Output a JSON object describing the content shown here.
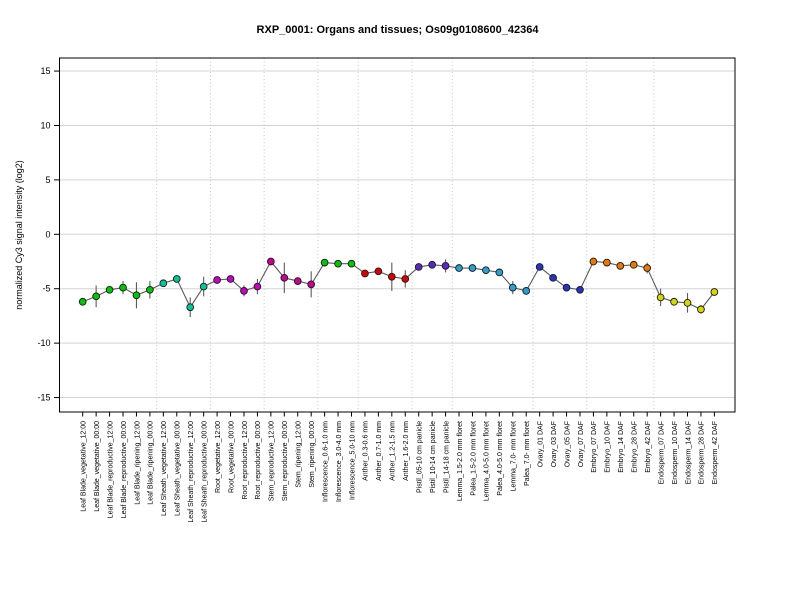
{
  "window": {
    "background": "#FFFFFF"
  },
  "chart_data": {
    "type": "line",
    "title": "RXP_0001: Organs and tissues; Os09g0108600_42364",
    "xlabel": "",
    "ylabel": "normalized Cy3 signal intensity (log2)",
    "ylim": [
      -16.5,
      16.5
    ],
    "yticks": [
      -15,
      -10,
      -5,
      0,
      5,
      10,
      15
    ],
    "legend_position": "none",
    "grid": {
      "horizontal": "solid at every y tick",
      "vertical": "dotted at organ group boundaries"
    },
    "colors": {
      "frame": "#000000",
      "h_gridline": "#D4D4D4",
      "v_gridline": "#C8C8C8",
      "series_line": "#5A5A5A",
      "error_bar": "#5A5A5A",
      "point_outline": "#1A1A1A"
    },
    "groups": [
      {
        "name": "Leaf Blade",
        "count": 6,
        "color": "#00C800"
      },
      {
        "name": "Leaf Sheath",
        "count": 4,
        "color": "#00C896"
      },
      {
        "name": "Root",
        "count": 4,
        "color": "#C800C8"
      },
      {
        "name": "Stem",
        "count": 4,
        "color": "#C80096"
      },
      {
        "name": "Inflorescence",
        "count": 3,
        "color": "#00C800"
      },
      {
        "name": "Anther",
        "count": 4,
        "color": "#DC0000"
      },
      {
        "name": "Pistil",
        "count": 3,
        "color": "#5A28C8"
      },
      {
        "name": "Lemma/Palea",
        "count": 6,
        "color": "#28A0D2"
      },
      {
        "name": "Ovary",
        "count": 4,
        "color": "#2832C8"
      },
      {
        "name": "Embryo",
        "count": 5,
        "color": "#EE7700"
      },
      {
        "name": "Endosperm",
        "count": 5,
        "color": "#D8D800"
      }
    ],
    "categories": [
      "Leaf Blade_vegetative_12:00",
      "Leaf Blade_vegetative_00:00",
      "Leaf Blade_reproductive_12:00",
      "Leaf Blade_reproductive_00:00",
      "Leaf Blade_ripening_12:00",
      "Leaf Blade_ripening_00:00",
      "Leaf Sheath_vegetative_12:00",
      "Leaf Sheath_vegetative_00:00",
      "Leaf Sheath_reproductive_12:00",
      "Leaf Sheath_reproductive_00:00",
      "Root_vegetative_12:00",
      "Root_vegetative_00:00",
      "Root_reproductive_12:00",
      "Root_reproductive_00:00",
      "Stem_reproductive_12:00",
      "Stem_reproductive_00:00",
      "Stem_ripening_12:00",
      "Stem_ripening_00:00",
      "Inflorescence_0.6-1.0 mm",
      "Inflorescence_3.0-4.0 mm",
      "Inflorescence_5.0-10 mm",
      "Anther_0.3-0.6 mm",
      "Anther_0.7-1.0 mm",
      "Anther_1.2-1.5 mm",
      "Anther_1.6-2.0 mm",
      "Pistil_05-10 cm panicle",
      "Pistil_10-14 cm panicle",
      "Pistil_14-18 cm panicle",
      "Lemma_1.5-2.0 mm floret",
      "Palea_1.5-2.0 mm floret",
      "Lemma_4.0-5.0 mm floret",
      "Palea_4.0-5.0 mm floret",
      "Lemma_7.0- mm floret",
      "Palea_7.0- mm floret",
      "Ovary_01 DAF",
      "Ovary_03 DAF",
      "Ovary_05 DAF",
      "Ovary_07 DAF",
      "Embryo_07 DAF",
      "Embryo_10 DAF",
      "Embryo_14 DAF",
      "Embryo_28 DAF",
      "Embryo_42 DAF",
      "Endosperm_07 DAF",
      "Endosperm_10 DAF",
      "Endosperm_14 DAF",
      "Endosperm_28 DAF",
      "Endosperm_42 DAF"
    ],
    "values": [
      -6.2,
      -5.7,
      -5.1,
      -4.9,
      -5.6,
      -5.1,
      -4.5,
      -4.1,
      -6.7,
      -4.8,
      -4.2,
      -4.1,
      -5.2,
      -4.8,
      -2.5,
      -4.0,
      -4.3,
      -4.6,
      -2.6,
      -2.7,
      -2.7,
      -3.6,
      -3.4,
      -3.9,
      -4.1,
      -3.0,
      -2.8,
      -2.9,
      -3.1,
      -3.1,
      -3.3,
      -3.5,
      -4.9,
      -5.2,
      -3.0,
      -4.0,
      -4.9,
      -5.1,
      -2.5,
      -2.6,
      -2.9,
      -2.8,
      -3.1,
      -5.8,
      -6.2,
      -6.3,
      -6.9,
      -5.3
    ],
    "errors": [
      0,
      1.0,
      0,
      0.6,
      1.2,
      0.8,
      0,
      0,
      0.9,
      0.9,
      0,
      0,
      0.5,
      0.7,
      0,
      1.4,
      0,
      1.2,
      0,
      0,
      0,
      0,
      0,
      1.3,
      0.8,
      0,
      0,
      0.6,
      0,
      0,
      0,
      0,
      0.6,
      0,
      0,
      0,
      0,
      0,
      0,
      0,
      0,
      0,
      0.5,
      0.8,
      0,
      0.9,
      0.4,
      0
    ]
  }
}
